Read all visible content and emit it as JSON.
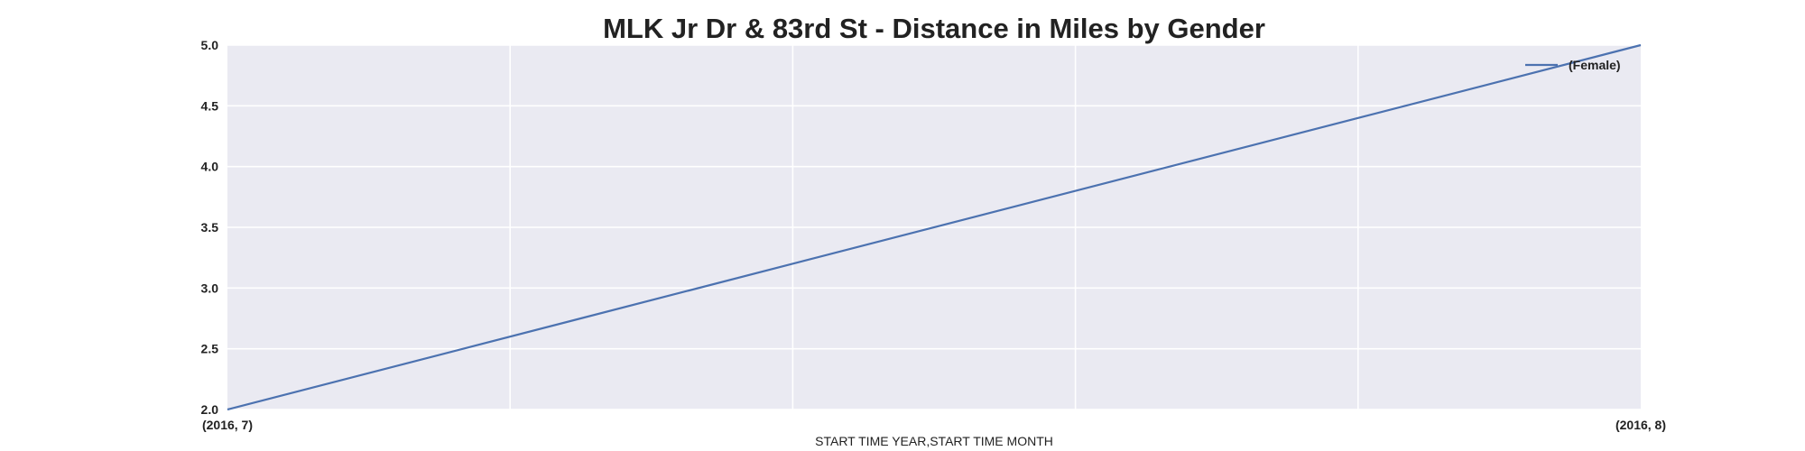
{
  "chart_data": {
    "type": "line",
    "title": "MLK Jr Dr & 83rd St - Distance in Miles by Gender",
    "xlabel": "START TIME YEAR,START TIME MONTH",
    "ylabel": "",
    "categories": [
      "(2016, 7)",
      "(2016, 8)"
    ],
    "series": [
      {
        "name": "(Female)",
        "values": [
          2.0,
          5.0
        ],
        "color": "#4c72b0"
      }
    ],
    "ylim": [
      2.0,
      5.0
    ],
    "yticks": [
      "2.0",
      "2.5",
      "3.0",
      "3.5",
      "4.0",
      "4.5",
      "5.0"
    ],
    "vertical_gridlines": 5,
    "grid": true,
    "legend_position": "top-right",
    "background_color": "#eaeaf2",
    "grid_color": "#ffffff"
  }
}
